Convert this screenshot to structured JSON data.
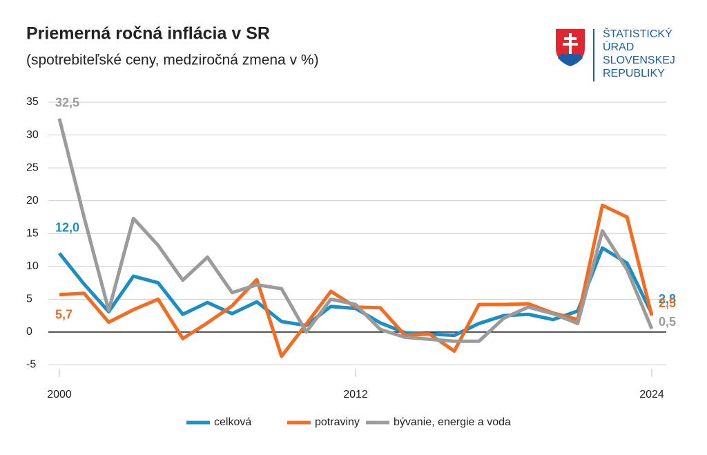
{
  "chart_data": {
    "type": "line",
    "title": "Priemerná ročná inflácia v SR",
    "subtitle": "(spotrebiteľské ceny, medziročná zmena v %)",
    "x": [
      2000,
      2001,
      2002,
      2003,
      2004,
      2005,
      2006,
      2007,
      2008,
      2009,
      2010,
      2011,
      2012,
      2013,
      2014,
      2015,
      2016,
      2017,
      2018,
      2019,
      2020,
      2021,
      2022,
      2023,
      2024
    ],
    "series": [
      {
        "name": "celková",
        "color": "#1b8ec4",
        "values": [
          12.0,
          7.3,
          3.1,
          8.5,
          7.5,
          2.7,
          4.5,
          2.8,
          4.6,
          1.6,
          1.0,
          3.9,
          3.6,
          1.4,
          -0.1,
          -0.3,
          -0.5,
          1.3,
          2.5,
          2.7,
          1.9,
          3.2,
          12.8,
          10.5,
          2.8
        ],
        "value_labels": [
          "12,0",
          null,
          null,
          null,
          null,
          null,
          null,
          null,
          null,
          null,
          null,
          null,
          null,
          null,
          null,
          null,
          null,
          null,
          null,
          null,
          null,
          null,
          null,
          null,
          "2,8"
        ]
      },
      {
        "name": "potraviny",
        "color": "#f36c21",
        "values": [
          5.7,
          5.9,
          1.5,
          3.4,
          5.0,
          -1.0,
          1.4,
          4.0,
          8.0,
          -3.7,
          1.2,
          6.2,
          3.8,
          3.7,
          -0.5,
          -0.3,
          -2.9,
          4.2,
          4.2,
          4.3,
          2.9,
          1.9,
          19.3,
          17.5,
          2.5
        ],
        "value_labels": [
          "5,7",
          null,
          null,
          null,
          null,
          null,
          null,
          null,
          null,
          null,
          null,
          null,
          null,
          null,
          null,
          null,
          null,
          null,
          null,
          null,
          null,
          null,
          null,
          null,
          "2,5"
        ]
      },
      {
        "name": "bývanie, energie a voda",
        "color": "#9b9b9b",
        "values": [
          32.5,
          17.5,
          3.3,
          17.3,
          13.2,
          7.9,
          11.4,
          6.0,
          7.2,
          6.6,
          0.0,
          5.0,
          4.2,
          0.4,
          -0.8,
          -1.1,
          -1.4,
          -1.4,
          2.1,
          3.8,
          2.8,
          1.3,
          15.4,
          9.5,
          0.5
        ],
        "value_labels": [
          "32,5",
          null,
          null,
          null,
          null,
          null,
          null,
          null,
          null,
          null,
          null,
          null,
          null,
          null,
          null,
          null,
          null,
          null,
          null,
          null,
          null,
          null,
          null,
          null,
          "0,5"
        ]
      }
    ],
    "xlim": [
      2000,
      2024
    ],
    "xticks": [
      2000,
      2012,
      2024
    ],
    "ylim": [
      -6,
      35
    ],
    "yticks": [
      -5,
      0,
      5,
      10,
      15,
      20,
      25,
      30,
      35
    ],
    "grid": true,
    "legend": "bottom"
  },
  "logo": {
    "lines": [
      "ŠTATISTICKÝ",
      "ÚRAD",
      "SLOVENSKEJ",
      "REPUBLIKY"
    ]
  }
}
